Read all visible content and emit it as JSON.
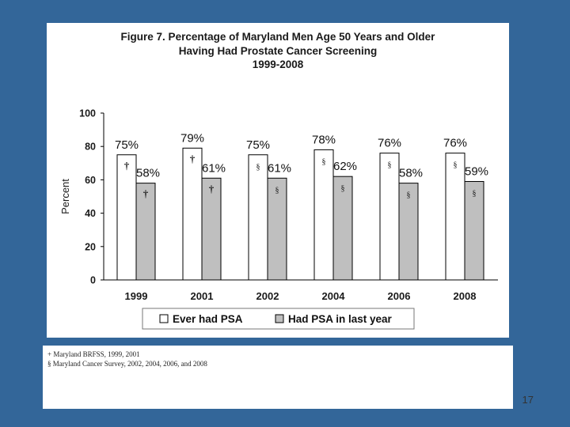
{
  "page_number": "17",
  "colors": {
    "background": "#336699",
    "ever_fill": "#ffffff",
    "last_year_fill": "#bfbfbf",
    "stroke": "#000000"
  },
  "chart_data": {
    "type": "bar",
    "title_lines": [
      "Figure 7. Percentage of Maryland Men Age 50 Years and Older",
      "Having Had Prostate Cancer Screening",
      "1999-2008"
    ],
    "categories": [
      "1999",
      "2001",
      "2002",
      "2004",
      "2006",
      "2008"
    ],
    "series": [
      {
        "name": "Ever had PSA",
        "values": [
          75,
          79,
          75,
          78,
          76,
          76
        ],
        "labels": [
          "75%",
          "79%",
          "75%",
          "78%",
          "76%",
          "76%"
        ],
        "markers": [
          "†",
          "†",
          "§",
          "§",
          "§",
          "§"
        ]
      },
      {
        "name": "Had PSA in last year",
        "values": [
          58,
          61,
          61,
          62,
          58,
          59
        ],
        "labels": [
          "58%",
          "61%",
          "61%",
          "62%",
          "58%",
          "59%"
        ],
        "markers": [
          "†",
          "†",
          "§",
          "§",
          "§",
          "§"
        ]
      }
    ],
    "xlabel": "",
    "ylabel": "Percent",
    "ylim": [
      0,
      100
    ],
    "yticks": [
      "0",
      "20",
      "40",
      "60",
      "80",
      "100"
    ],
    "grid": false,
    "legend_position": "bottom"
  },
  "footnotes": [
    "+ Maryland BRFSS, 1999, 2001",
    "§ Maryland Cancer Survey, 2002, 2004, 2006, and 2008"
  ]
}
